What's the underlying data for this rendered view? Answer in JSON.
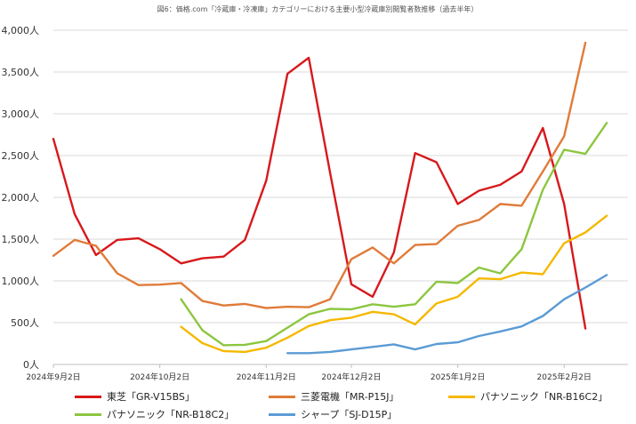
{
  "chart_data": {
    "type": "line",
    "title": "図6：価格.com「冷蔵庫・冷凍庫」カテゴリーにおける主要小型冷蔵庫別閲覧者数推移（過去半年）",
    "xlabel": "",
    "ylabel": "",
    "ylim": [
      0,
      4000
    ],
    "yticks": [
      {
        "value": 0,
        "label": "0人"
      },
      {
        "value": 500,
        "label": "500人"
      },
      {
        "value": 1000,
        "label": "1,000人"
      },
      {
        "value": 1500,
        "label": "1,500人"
      },
      {
        "value": 2000,
        "label": "2,000人"
      },
      {
        "value": 2500,
        "label": "2,500人"
      },
      {
        "value": 3000,
        "label": "3,000人"
      },
      {
        "value": 3500,
        "label": "3,500人"
      },
      {
        "value": 4000,
        "label": "4,000人"
      }
    ],
    "x_count": 28,
    "xticks": [
      {
        "index": 0,
        "label": "2024年9月2日"
      },
      {
        "index": 5,
        "label": "2024年10月2日"
      },
      {
        "index": 10,
        "label": "2024年11月2日"
      },
      {
        "index": 14,
        "label": "2024年12月2日"
      },
      {
        "index": 19,
        "label": "2025年1月2日"
      },
      {
        "index": 24,
        "label": "2025年2月2日"
      }
    ],
    "grid": true,
    "legend_position": "bottom",
    "series": [
      {
        "name": "東芝「GR-V15BS」",
        "color": "#d7191c",
        "start": 0,
        "values": [
          2700,
          1800,
          1310,
          1490,
          1510,
          1380,
          1210,
          1270,
          1290,
          1490,
          2200,
          3480,
          3670,
          2300,
          960,
          810,
          1340,
          2530,
          2420,
          1920,
          2080,
          2150,
          2310,
          2830,
          1920,
          430
        ]
      },
      {
        "name": "三菱電機「MR-P15J」",
        "color": "#e07b39",
        "start": 0,
        "values": [
          1300,
          1490,
          1420,
          1090,
          950,
          955,
          975,
          760,
          705,
          725,
          675,
          690,
          685,
          780,
          1260,
          1400,
          1210,
          1430,
          1440,
          1660,
          1730,
          1920,
          1900,
          2310,
          2730,
          3850
        ]
      },
      {
        "name": "パナソニック「NR-B16C2」",
        "color": "#f5b800",
        "start": 6,
        "values": [
          450,
          255,
          160,
          150,
          200,
          320,
          460,
          530,
          560,
          630,
          600,
          480,
          730,
          810,
          1030,
          1020,
          1100,
          1080,
          1450,
          1580,
          1780
        ]
      },
      {
        "name": "パナソニック「NR-B18C2」",
        "color": "#8cc63f",
        "start": 6,
        "values": [
          780,
          410,
          230,
          235,
          280,
          440,
          600,
          665,
          660,
          720,
          690,
          720,
          990,
          975,
          1160,
          1090,
          1380,
          2090,
          2570,
          2520,
          2890
        ]
      },
      {
        "name": "シャープ「SJ-D15P」",
        "color": "#5b9bd5",
        "start": 11,
        "values": [
          135,
          135,
          150,
          180,
          210,
          240,
          180,
          245,
          265,
          340,
          395,
          455,
          580,
          780,
          920,
          1070
        ]
      }
    ]
  }
}
